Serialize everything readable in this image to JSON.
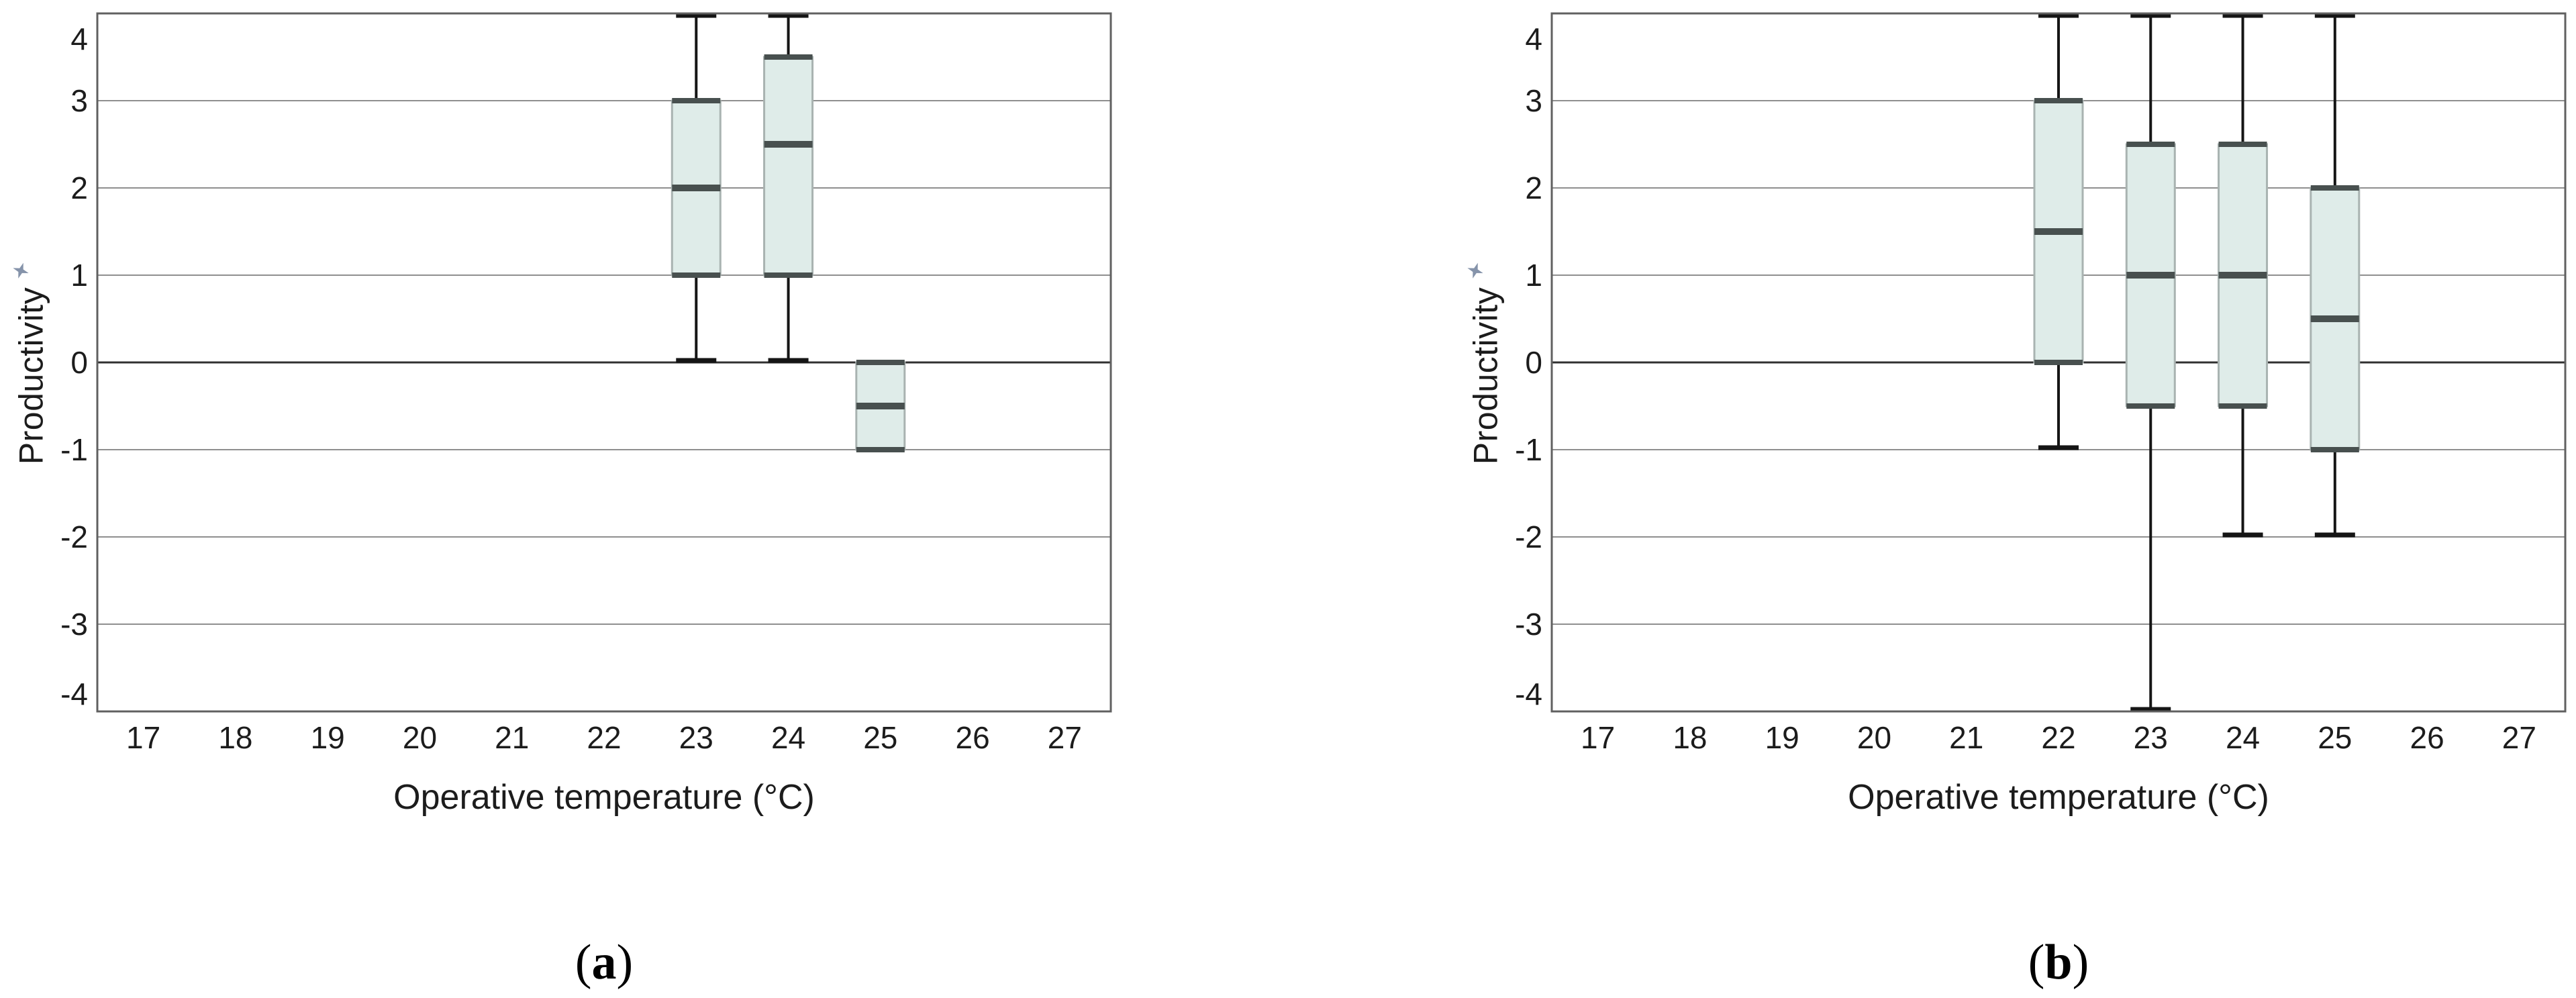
{
  "figure": {
    "background": "#ffffff",
    "panels": [
      {
        "caption_open": "(",
        "caption_letter": "a",
        "caption_close": ")"
      },
      {
        "caption_open": "(",
        "caption_letter": "b",
        "caption_close": ")"
      }
    ]
  },
  "icons": {
    "y_axis_pin": "pin-icon"
  },
  "colors": {
    "box_fill": "#dfece9",
    "box_stroke": "#a9b3b1",
    "median_and_edges": "#48504f",
    "whisker": "#151515",
    "gridline": "#8f8f8f",
    "zero_line": "#303030",
    "pane_border": "#606060",
    "text": "#1c1c1c",
    "pin_icon": "#8593aa"
  },
  "chart_data": [
    {
      "type": "boxplot",
      "panel": "a",
      "xlabel": "Operative temperature (°C)",
      "ylabel": "Productivity",
      "xlim": [
        16.5,
        27.5
      ],
      "ylim": [
        -4,
        4
      ],
      "x_ticks": [
        17,
        18,
        19,
        20,
        21,
        22,
        23,
        24,
        25,
        26,
        27
      ],
      "y_ticks": [
        -4,
        -3,
        -2,
        -1,
        0,
        1,
        2,
        3,
        4
      ],
      "grid": "horizontal-only",
      "zero_line_emphasized": true,
      "legend": "none",
      "boxes": [
        {
          "x": 23,
          "whisker_low": 0,
          "q1": 1,
          "median": 2,
          "q3": 3,
          "whisker_high": 4
        },
        {
          "x": 24,
          "whisker_low": 0,
          "q1": 1,
          "median": 2.5,
          "q3": 3.5,
          "whisker_high": 4
        },
        {
          "x": 25,
          "whisker_low": -1,
          "q1": -1,
          "median": -0.5,
          "q3": 0,
          "whisker_high": 0
        }
      ]
    },
    {
      "type": "boxplot",
      "panel": "b",
      "xlabel": "Operative temperature (°C)",
      "ylabel": "Productivity",
      "xlim": [
        16.5,
        27.5
      ],
      "ylim": [
        -4,
        4
      ],
      "x_ticks": [
        17,
        18,
        19,
        20,
        21,
        22,
        23,
        24,
        25,
        26,
        27
      ],
      "y_ticks": [
        -4,
        -3,
        -2,
        -1,
        0,
        1,
        2,
        3,
        4
      ],
      "grid": "horizontal-only",
      "zero_line_emphasized": true,
      "legend": "none",
      "boxes": [
        {
          "x": 22,
          "whisker_low": -1,
          "q1": 0,
          "median": 1.5,
          "q3": 3,
          "whisker_high": 4
        },
        {
          "x": 23,
          "whisker_low": -4,
          "q1": -0.5,
          "median": 1,
          "q3": 2.5,
          "whisker_high": 4
        },
        {
          "x": 24,
          "whisker_low": -2,
          "q1": -0.5,
          "median": 1,
          "q3": 2.5,
          "whisker_high": 4
        },
        {
          "x": 25,
          "whisker_low": -2,
          "q1": -1,
          "median": 0.5,
          "q3": 2,
          "whisker_high": 4
        }
      ]
    }
  ]
}
